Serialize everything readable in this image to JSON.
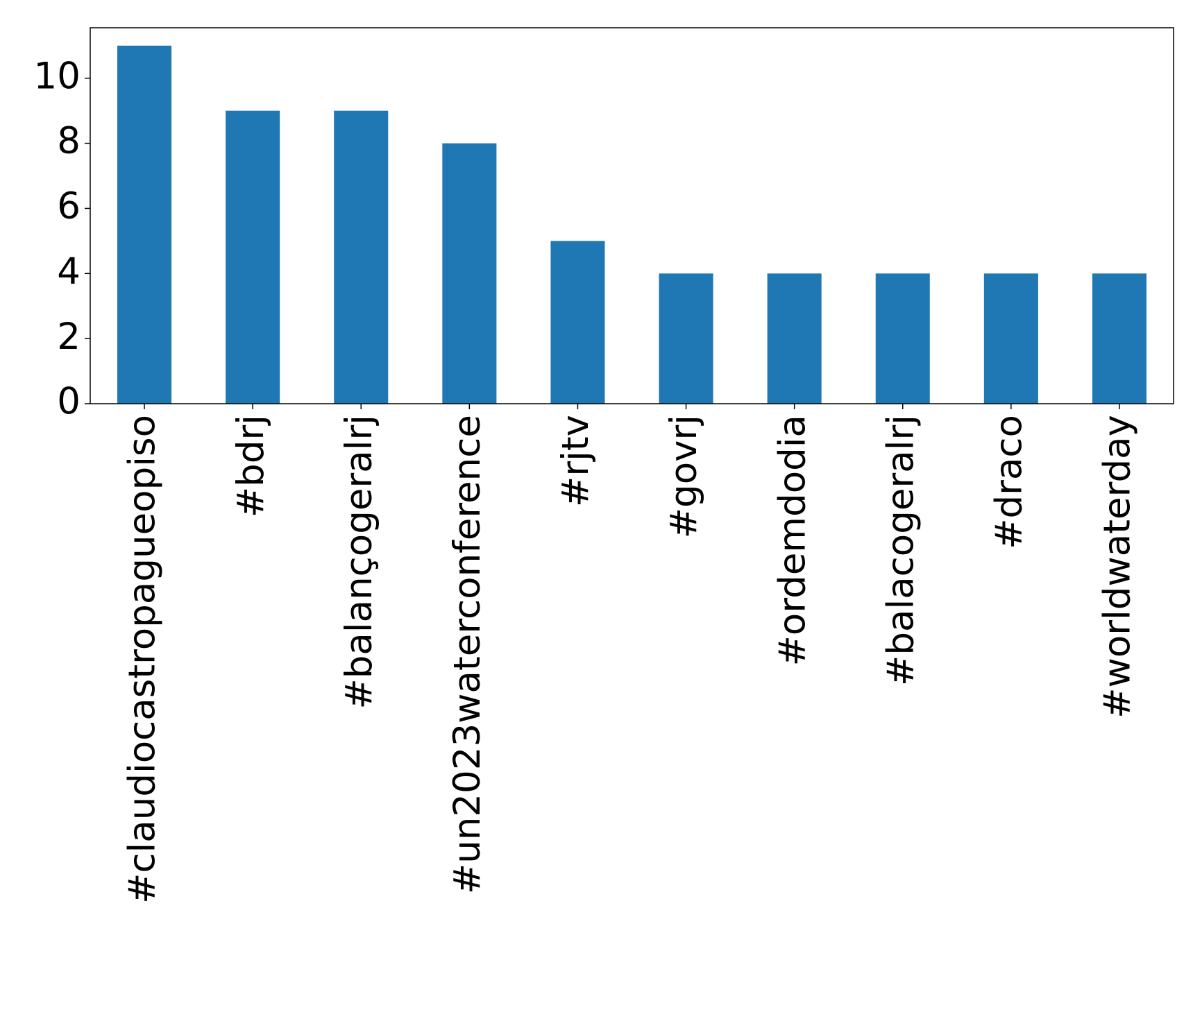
{
  "chart_data": {
    "type": "bar",
    "categories": [
      "#claudiocastropagueopiso",
      "#bdrj",
      "#balançogeralrj",
      "#un2023waterconference",
      "#rjtv",
      "#govrj",
      "#ordemdodia",
      "#balacogeralrj",
      "#draco",
      "#worldwaterday"
    ],
    "values": [
      11,
      9,
      9,
      8,
      5,
      4,
      4,
      4,
      4,
      4
    ],
    "color": "#1f77b4",
    "ylim": [
      0,
      11.55
    ],
    "yticks": [
      0,
      2,
      4,
      6,
      8,
      10
    ],
    "grid": false
  }
}
